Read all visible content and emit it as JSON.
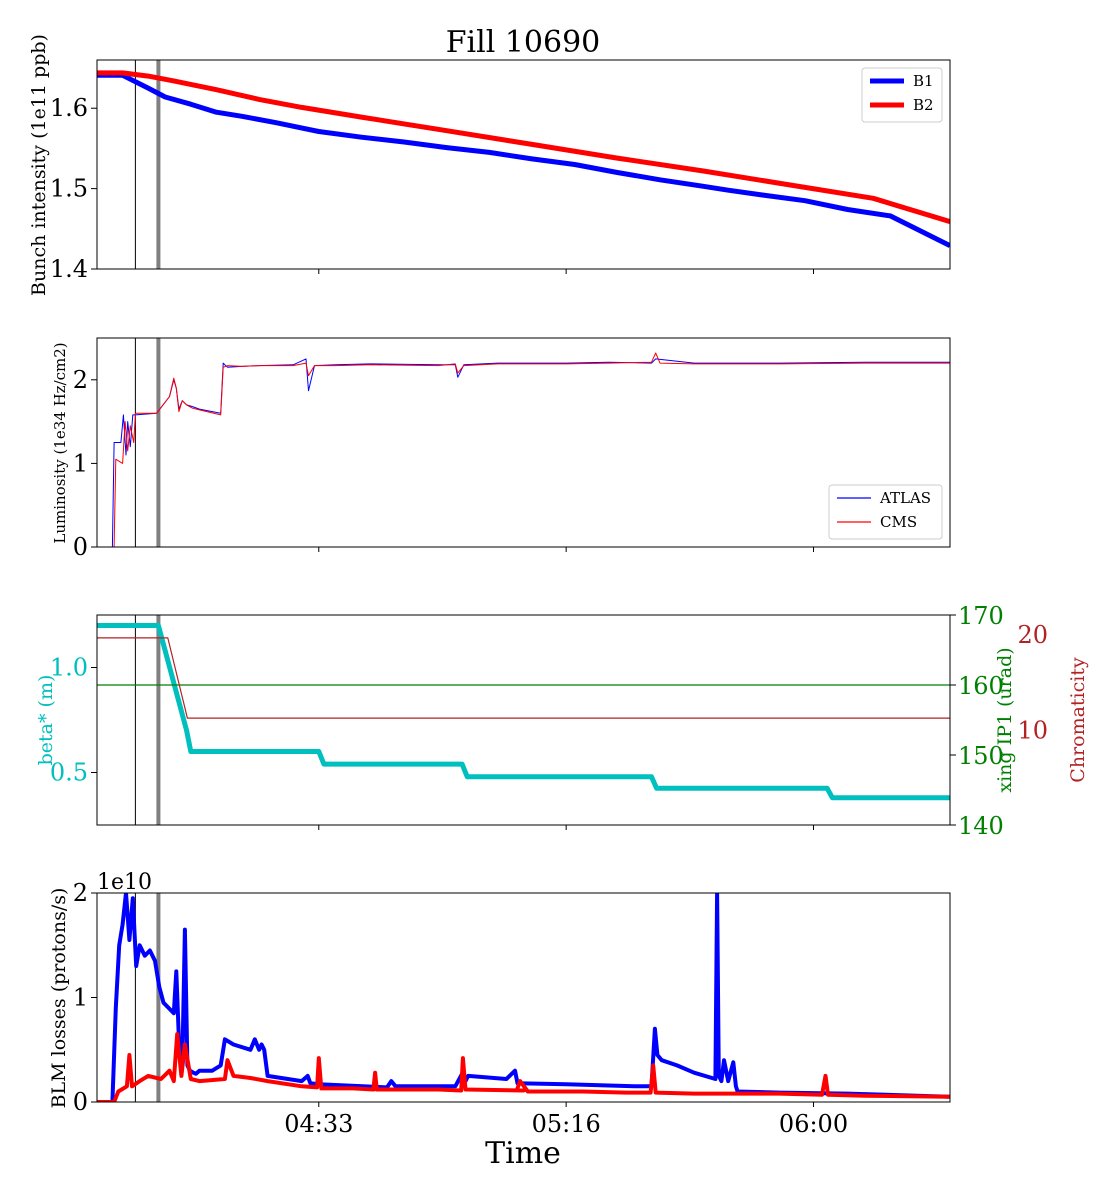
{
  "figure": {
    "title": "Fill 10690",
    "xlabel": "Time",
    "x_ticks": [
      "04:33",
      "05:16",
      "06:00"
    ]
  },
  "chart_data": [
    {
      "type": "line",
      "panel": "bunch-intensity",
      "ylabel": "Bunch intensity (1e11 ppb)",
      "ylim": [
        1.4,
        1.66
      ],
      "y_ticks": [
        "1.4",
        "1.5",
        "1.6"
      ],
      "legend": "top-right",
      "series": [
        {
          "name": "B1",
          "color": "#0000ff",
          "x": [
            0,
            3,
            6,
            8,
            11,
            14,
            17,
            21,
            26,
            31,
            36,
            41,
            46,
            51,
            56,
            61,
            66,
            71,
            74,
            78,
            83,
            88,
            93,
            100
          ],
          "y": [
            1.641,
            1.641,
            1.625,
            1.614,
            1.605,
            1.595,
            1.59,
            1.582,
            1.571,
            1.564,
            1.558,
            1.551,
            1.545,
            1.537,
            1.53,
            1.52,
            1.511,
            1.503,
            1.498,
            1.492,
            1.485,
            1.474,
            1.466,
            1.429
          ]
        },
        {
          "name": "B2",
          "color": "#ff0000",
          "x": [
            0,
            3,
            6,
            9,
            14,
            19,
            24,
            31,
            41,
            51,
            61,
            71,
            81,
            91,
            100
          ],
          "y": [
            1.644,
            1.644,
            1.64,
            1.634,
            1.623,
            1.611,
            1.601,
            1.589,
            1.572,
            1.555,
            1.538,
            1.522,
            1.505,
            1.488,
            1.459
          ]
        }
      ]
    },
    {
      "type": "line",
      "panel": "luminosity",
      "ylabel": "Luminosity (1e34 Hz/cm2)",
      "ylim": [
        0,
        2.5
      ],
      "y_ticks": [
        "0",
        "1",
        "2"
      ],
      "legend": "bottom-right",
      "series": [
        {
          "name": "ATLAS",
          "color": "#0000ff",
          "x": [
            0,
            1.8,
            2.0,
            2.8,
            3.1,
            3.4,
            3.6,
            3.9,
            4.2,
            4.5,
            7.0,
            8.5,
            9.0,
            9.3,
            9.6,
            10.0,
            10.5,
            11.2,
            12,
            14.5,
            14.8,
            15.3,
            17,
            19,
            23,
            24.5,
            24.8,
            25.5,
            28,
            32,
            40,
            42,
            42.3,
            43,
            47,
            55,
            60,
            65,
            65.5,
            70,
            80,
            90,
            100
          ],
          "y": [
            0,
            0,
            1.25,
            1.25,
            1.58,
            1.1,
            1.5,
            1.2,
            1.58,
            1.58,
            1.6,
            1.8,
            2.0,
            1.9,
            1.65,
            1.75,
            1.7,
            1.68,
            1.65,
            1.6,
            2.2,
            2.15,
            2.16,
            2.17,
            2.18,
            2.25,
            1.87,
            2.17,
            2.18,
            2.19,
            2.18,
            2.18,
            2.03,
            2.18,
            2.2,
            2.2,
            2.21,
            2.2,
            2.25,
            2.2,
            2.2,
            2.21,
            2.21
          ]
        },
        {
          "name": "CMS",
          "color": "#ff0000",
          "x": [
            0,
            2.0,
            2.2,
            3.0,
            3.3,
            3.6,
            3.9,
            4.3,
            4.5,
            7.0,
            8.5,
            9.0,
            9.3,
            9.6,
            10.0,
            10.5,
            11.2,
            12,
            14.5,
            14.8,
            15.3,
            17,
            19,
            23,
            24.5,
            24.8,
            25.5,
            28,
            32,
            40,
            42,
            42.3,
            43,
            47,
            55,
            60,
            65,
            65.5,
            66,
            70,
            80,
            90,
            100
          ],
          "y": [
            0,
            0,
            1.05,
            1.0,
            1.5,
            1.15,
            1.45,
            1.25,
            1.6,
            1.6,
            1.8,
            2.02,
            1.9,
            1.62,
            1.75,
            1.7,
            1.66,
            1.64,
            1.58,
            2.15,
            2.17,
            2.16,
            2.17,
            2.17,
            2.2,
            2.05,
            2.17,
            2.17,
            2.18,
            2.17,
            2.19,
            2.08,
            2.17,
            2.19,
            2.19,
            2.2,
            2.21,
            2.32,
            2.2,
            2.19,
            2.19,
            2.2,
            2.2
          ]
        }
      ]
    },
    {
      "type": "line",
      "panel": "optics",
      "ylabel": "beta* (m)",
      "ylim": [
        0.25,
        1.25
      ],
      "y_ticks": [
        "0.5",
        "1.0"
      ],
      "y2label": "xing IP1 (urad)",
      "y2lim": [
        140,
        170
      ],
      "y2_ticks": [
        "140",
        "150",
        "160",
        "170"
      ],
      "y3label": "Chromaticity",
      "y3lim": [
        0,
        22
      ],
      "y3_ticks": [
        "10",
        "20"
      ],
      "series": [
        {
          "name": "beta*",
          "axis": "left",
          "color": "#00bfbf",
          "x": [
            0,
            7.2,
            10.5,
            11.0,
            26,
            26.6,
            42.8,
            43.4,
            65,
            65.6,
            85.6,
            86.2,
            100
          ],
          "y": [
            1.2,
            1.2,
            0.7,
            0.6,
            0.6,
            0.54,
            0.54,
            0.48,
            0.48,
            0.425,
            0.425,
            0.38,
            0.38
          ]
        },
        {
          "name": "xing IP1",
          "axis": "right",
          "color": "#008000",
          "x": [
            0,
            100
          ],
          "y": [
            160,
            160
          ]
        },
        {
          "name": "Chromaticity",
          "axis": "far-right",
          "color": "#b22222",
          "x": [
            0,
            8.3,
            10.6,
            100
          ],
          "y": [
            19.6,
            19.6,
            11.2,
            11.2
          ]
        }
      ]
    },
    {
      "type": "line",
      "panel": "blm-losses",
      "ylabel": "BLM losses (protons/s)",
      "ylim": [
        0,
        2
      ],
      "y_ticks": [
        "0",
        "1",
        "2"
      ],
      "offset_label": "1e10",
      "series": [
        {
          "name": "B1",
          "color": "#0000ff",
          "x": [
            0,
            1.8,
            2.2,
            2.6,
            3.0,
            3.4,
            3.8,
            4.2,
            4.6,
            5.0,
            5.6,
            6.2,
            6.8,
            7.3,
            7.8,
            8.4,
            9.0,
            9.3,
            9.6,
            10.0,
            10.3,
            10.6,
            10.9,
            11.3,
            11.6,
            12.0,
            13.5,
            14.5,
            15.0,
            16,
            18,
            18.5,
            19,
            19.3,
            19.6,
            20,
            24,
            24.7,
            25,
            26,
            34,
            34.5,
            35,
            42,
            42.8,
            43.2,
            43.5,
            48,
            49,
            49.3,
            55,
            63,
            65,
            65.4,
            65.7,
            66.2,
            68,
            70,
            72.5,
            72.7,
            72.9,
            73.2,
            73.5,
            74,
            74.6,
            74.9,
            75.1,
            80,
            88,
            100
          ],
          "y": [
            0,
            0,
            0.9,
            1.5,
            1.7,
            2.0,
            1.55,
            1.95,
            1.3,
            1.5,
            1.4,
            1.45,
            1.35,
            1.1,
            0.95,
            0.9,
            0.85,
            1.25,
            0.6,
            0.35,
            1.65,
            0.35,
            0.3,
            0.28,
            0.27,
            0.3,
            0.3,
            0.35,
            0.6,
            0.55,
            0.5,
            0.6,
            0.5,
            0.55,
            0.5,
            0.25,
            0.2,
            0.25,
            0.18,
            0.17,
            0.14,
            0.2,
            0.15,
            0.15,
            0.27,
            0.2,
            0.25,
            0.22,
            0.3,
            0.18,
            0.17,
            0.15,
            0.15,
            0.7,
            0.45,
            0.4,
            0.35,
            0.28,
            0.22,
            2.0,
            0.25,
            0.2,
            0.4,
            0.2,
            0.38,
            0.15,
            0.1,
            0.09,
            0.08,
            0.05
          ]
        },
        {
          "name": "B2",
          "color": "#ff0000",
          "x": [
            0,
            2.0,
            2.5,
            3.5,
            3.8,
            4.1,
            5,
            6,
            7.5,
            8.5,
            9,
            9.4,
            9.9,
            10.3,
            11,
            12,
            15,
            15.3,
            16,
            18,
            20,
            24,
            25.8,
            26,
            26.3,
            30,
            32.4,
            32.6,
            32.8,
            40,
            42.7,
            42.9,
            43.2,
            50,
            49.2,
            49.6,
            50.5,
            57,
            62,
            64.9,
            65.2,
            65.5,
            70,
            80,
            85,
            85.4,
            85.7,
            90,
            100
          ],
          "y": [
            0,
            0,
            0.1,
            0.15,
            0.45,
            0.15,
            0.2,
            0.25,
            0.22,
            0.3,
            0.2,
            0.65,
            0.25,
            0.55,
            0.22,
            0.2,
            0.22,
            0.4,
            0.25,
            0.23,
            0.2,
            0.15,
            0.14,
            0.42,
            0.13,
            0.13,
            0.12,
            0.28,
            0.12,
            0.12,
            0.11,
            0.42,
            0.12,
            0.11,
            0.11,
            0.2,
            0.1,
            0.1,
            0.09,
            0.09,
            0.35,
            0.09,
            0.08,
            0.08,
            0.07,
            0.25,
            0.07,
            0.06,
            0.05
          ]
        }
      ]
    }
  ],
  "markers": {
    "thin_line_x": 4.5,
    "thick_line_x": 7.2,
    "thin_color": "#000000",
    "thick_color": "#808080"
  },
  "tick_positions": [
    26,
    55,
    84
  ]
}
